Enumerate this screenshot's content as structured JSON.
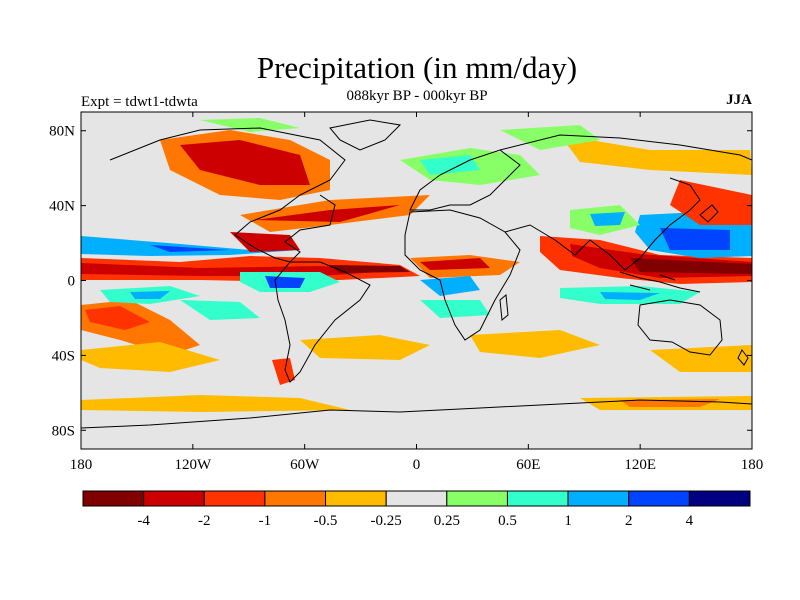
{
  "title": "Precipitation (in mm/day)",
  "subtitle_center": "088kyr BP - 000kyr BP",
  "subtitle_left": "Expt = tdwt1-tdwta",
  "subtitle_right": "JJA",
  "lat_ticks": [
    "80N",
    "40N",
    "0",
    "40S",
    "80S"
  ],
  "lon_ticks": [
    "180",
    "120W",
    "60W",
    "0",
    "60E",
    "120E",
    "180"
  ],
  "colorbar": {
    "colors": [
      "#800000",
      "#cc0000",
      "#ff3300",
      "#ff7700",
      "#ffbb00",
      "#e5e5e5",
      "#88ff66",
      "#33ffcc",
      "#00b0ff",
      "#0044ff",
      "#000080"
    ],
    "labels": [
      "-4",
      "-2",
      "-1",
      "-0.5",
      "-0.25",
      "0.25",
      "0.5",
      "1",
      "2",
      "4"
    ]
  },
  "colors": {
    "background": "#e5e5e5",
    "frame": "#000000"
  }
}
